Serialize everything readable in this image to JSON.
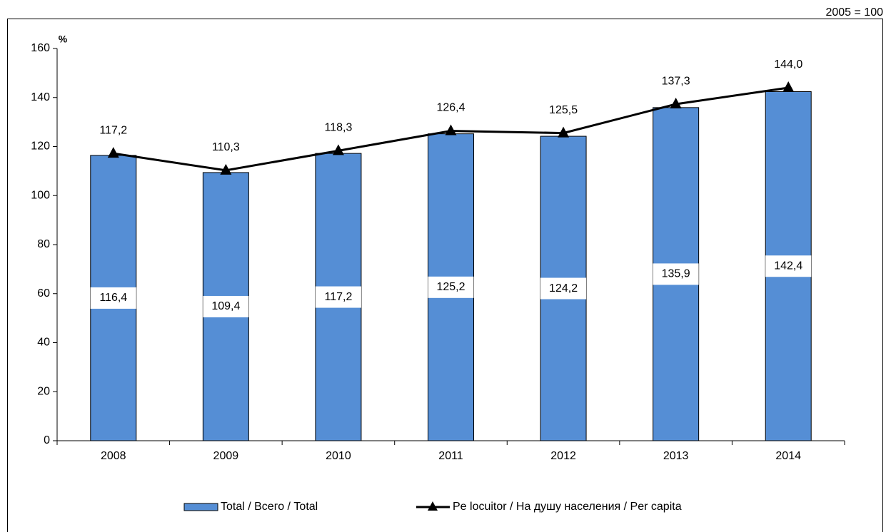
{
  "chart_data": {
    "type": "bar",
    "note": "2005 = 100",
    "ylabel": "%",
    "categories": [
      "2008",
      "2009",
      "2010",
      "2011",
      "2012",
      "2013",
      "2014"
    ],
    "series": [
      {
        "name": "Total / Всего / Total",
        "type": "bar",
        "color": "#558ed5",
        "values": [
          116.4,
          109.4,
          117.2,
          125.2,
          124.2,
          135.9,
          142.4
        ],
        "value_labels": [
          "116,4",
          "109,4",
          "117,2",
          "125,2",
          "124,2",
          "135,9",
          "142,4"
        ]
      },
      {
        "name": "Pe locuitor / На душу населения / Per capita",
        "type": "line",
        "color": "#000000",
        "values": [
          117.2,
          110.3,
          118.3,
          126.4,
          125.5,
          137.3,
          144.0
        ],
        "value_labels": [
          "117,2",
          "110,3",
          "118,3",
          "126,4",
          "125,5",
          "137,3",
          "144,0"
        ]
      }
    ],
    "ylim": [
      0,
      160
    ],
    "yticks": [
      0,
      20,
      40,
      60,
      80,
      100,
      120,
      140,
      160
    ],
    "grid": false,
    "legend": "bottom"
  }
}
